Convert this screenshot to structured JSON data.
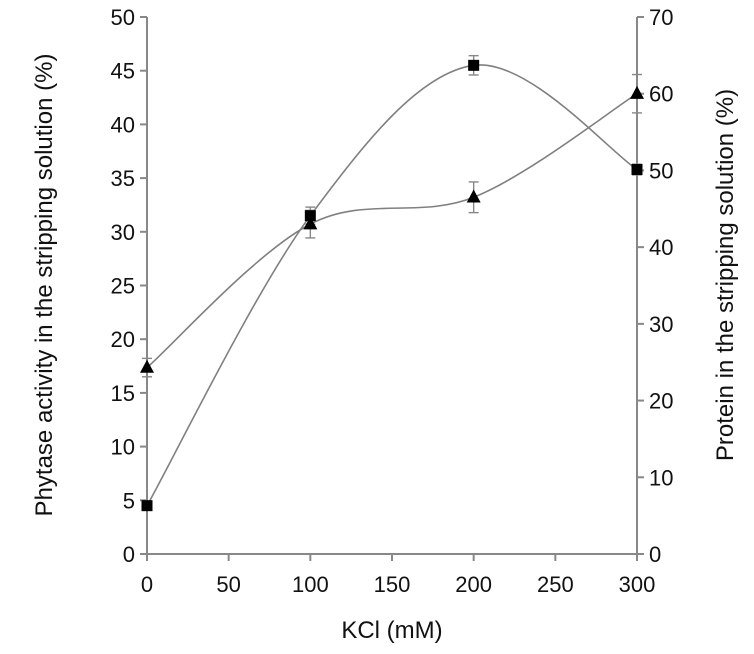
{
  "chart_data": {
    "type": "line",
    "xlabel": "KCl (mM)",
    "ylabel_left": "Phytase activity in the stripping solution (%)",
    "ylabel_right": "Protein in the stripping solution (%)",
    "x_ticks": [
      0,
      50,
      100,
      150,
      200,
      250,
      300
    ],
    "x_tick_labels": [
      "0",
      "50",
      "100",
      "150",
      "200",
      "250",
      "300"
    ],
    "y_left_ticks": [
      0,
      5,
      10,
      15,
      20,
      25,
      30,
      35,
      40,
      45,
      50
    ],
    "y_left_tick_labels": [
      "0",
      "5",
      "10",
      "15",
      "20",
      "25",
      "30",
      "35",
      "40",
      "45",
      "50"
    ],
    "y_right_ticks": [
      0,
      10,
      20,
      30,
      40,
      50,
      60,
      70
    ],
    "y_right_tick_labels": [
      "0",
      "10",
      "20",
      "30",
      "40",
      "50",
      "60",
      "70"
    ],
    "xlim": [
      0,
      300
    ],
    "ylim_left": [
      0,
      50
    ],
    "ylim_right": [
      0,
      70
    ],
    "grid": false,
    "legend": "none",
    "series": [
      {
        "marker": "square",
        "axis": "left",
        "color": "#808080",
        "marker_color": "#000000",
        "x": [
          0,
          100,
          200,
          300
        ],
        "values": [
          4.5,
          31.5,
          45.5,
          35.8
        ],
        "errors": [
          0.4,
          0.8,
          0.9,
          0.5
        ]
      },
      {
        "marker": "triangle",
        "axis": "right",
        "color": "#808080",
        "marker_color": "#000000",
        "x": [
          0,
          100,
          200,
          300
        ],
        "values": [
          24.3,
          43.0,
          46.5,
          60.0
        ],
        "errors": [
          1.2,
          1.8,
          2.0,
          2.5
        ]
      }
    ]
  }
}
